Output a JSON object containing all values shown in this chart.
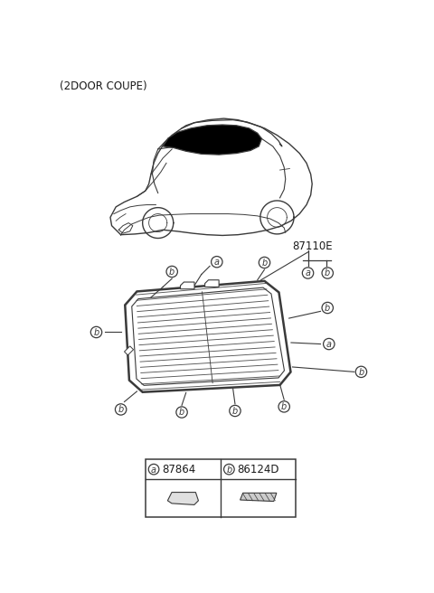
{
  "title": "(2DOOR COUPE)",
  "part_number_main": "87110E",
  "parts": [
    {
      "label": "a",
      "part_num": "87864"
    },
    {
      "label": "b",
      "part_num": "86124D"
    }
  ],
  "bg_color": "#ffffff",
  "line_color": "#3a3a3a",
  "text_color": "#1a1a1a"
}
